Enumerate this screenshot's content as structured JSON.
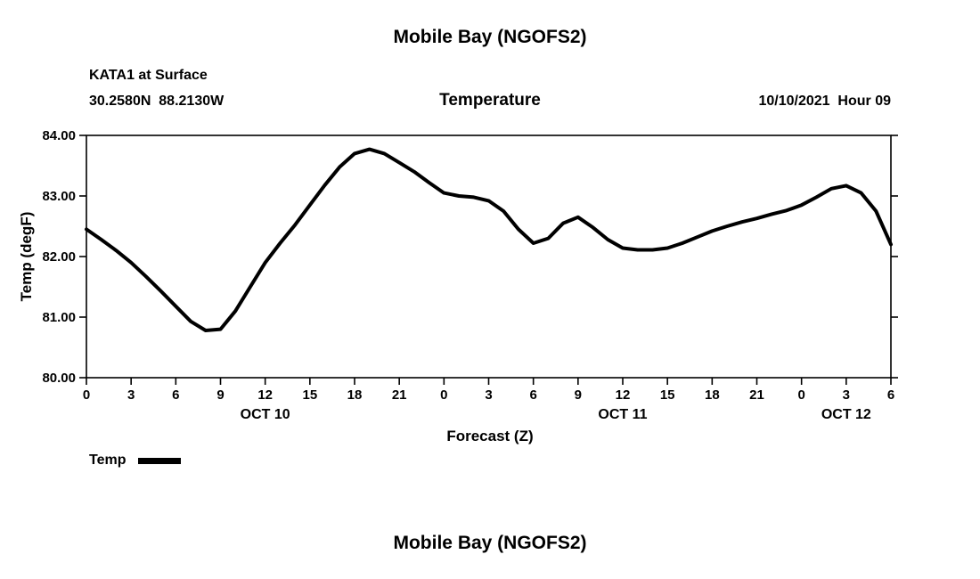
{
  "page": {
    "top_title": "Mobile Bay (NGOFS2)",
    "bottom_title": "Mobile Bay (NGOFS2)"
  },
  "header": {
    "station": "KATA1 at Surface",
    "coordinates": "30.2580N  88.2130W",
    "plot_title": "Temperature",
    "datetime": "10/10/2021  Hour 09"
  },
  "legend": {
    "label": "Temp"
  },
  "chart_data": {
    "type": "line",
    "title": "Temperature",
    "subtitle": "KATA1 at Surface, 30.2580N 88.2130W, model run 10/10/2021 Hour 09",
    "xlabel": "Forecast (Z)",
    "ylabel": "Temp (degF)",
    "ylim": [
      80.0,
      84.0
    ],
    "xlim_hours": [
      0,
      54
    ],
    "grid": false,
    "legend_position": "bottom-left",
    "line_color": "#000000",
    "y_ticks": [
      80,
      81,
      82,
      83,
      84
    ],
    "y_tick_labels": [
      "80.00",
      "81.00",
      "82.00",
      "83.00",
      "84.00"
    ],
    "x_ticks_hours": [
      0,
      3,
      6,
      9,
      12,
      15,
      18,
      21,
      24,
      27,
      30,
      33,
      36,
      39,
      42,
      45,
      48,
      51,
      54
    ],
    "x_tick_labels": [
      "0",
      "3",
      "6",
      "9",
      "12",
      "15",
      "18",
      "21",
      "0",
      "3",
      "6",
      "9",
      "12",
      "15",
      "18",
      "21",
      "0",
      "3",
      "6"
    ],
    "date_labels": [
      {
        "label": "OCT 10",
        "hour": 12
      },
      {
        "label": "OCT 11",
        "hour": 36
      },
      {
        "label": "OCT 12",
        "hour": 51
      }
    ],
    "series": [
      {
        "name": "Temp",
        "color": "#000000",
        "x_hours": [
          0,
          1,
          2,
          3,
          4,
          5,
          6,
          7,
          8,
          9,
          10,
          11,
          12,
          13,
          14,
          15,
          16,
          17,
          18,
          19,
          20,
          21,
          22,
          23,
          24,
          25,
          26,
          27,
          28,
          29,
          30,
          31,
          32,
          33,
          34,
          35,
          36,
          37,
          38,
          39,
          40,
          41,
          42,
          43,
          44,
          45,
          46,
          47,
          48,
          49,
          50,
          51,
          52,
          53,
          54
        ],
        "values": [
          82.45,
          82.28,
          82.1,
          81.9,
          81.67,
          81.43,
          81.18,
          80.93,
          80.78,
          80.8,
          81.1,
          81.5,
          81.9,
          82.22,
          82.52,
          82.85,
          83.18,
          83.48,
          83.7,
          83.77,
          83.7,
          83.55,
          83.4,
          83.22,
          83.05,
          83.0,
          82.98,
          82.92,
          82.75,
          82.45,
          82.22,
          82.3,
          82.55,
          82.65,
          82.48,
          82.28,
          82.14,
          82.11,
          82.11,
          82.14,
          82.22,
          82.32,
          82.42,
          82.5,
          82.57,
          82.63,
          82.7,
          82.76,
          82.85,
          82.98,
          83.12,
          83.17,
          83.05,
          82.75,
          82.2
        ]
      }
    ]
  }
}
